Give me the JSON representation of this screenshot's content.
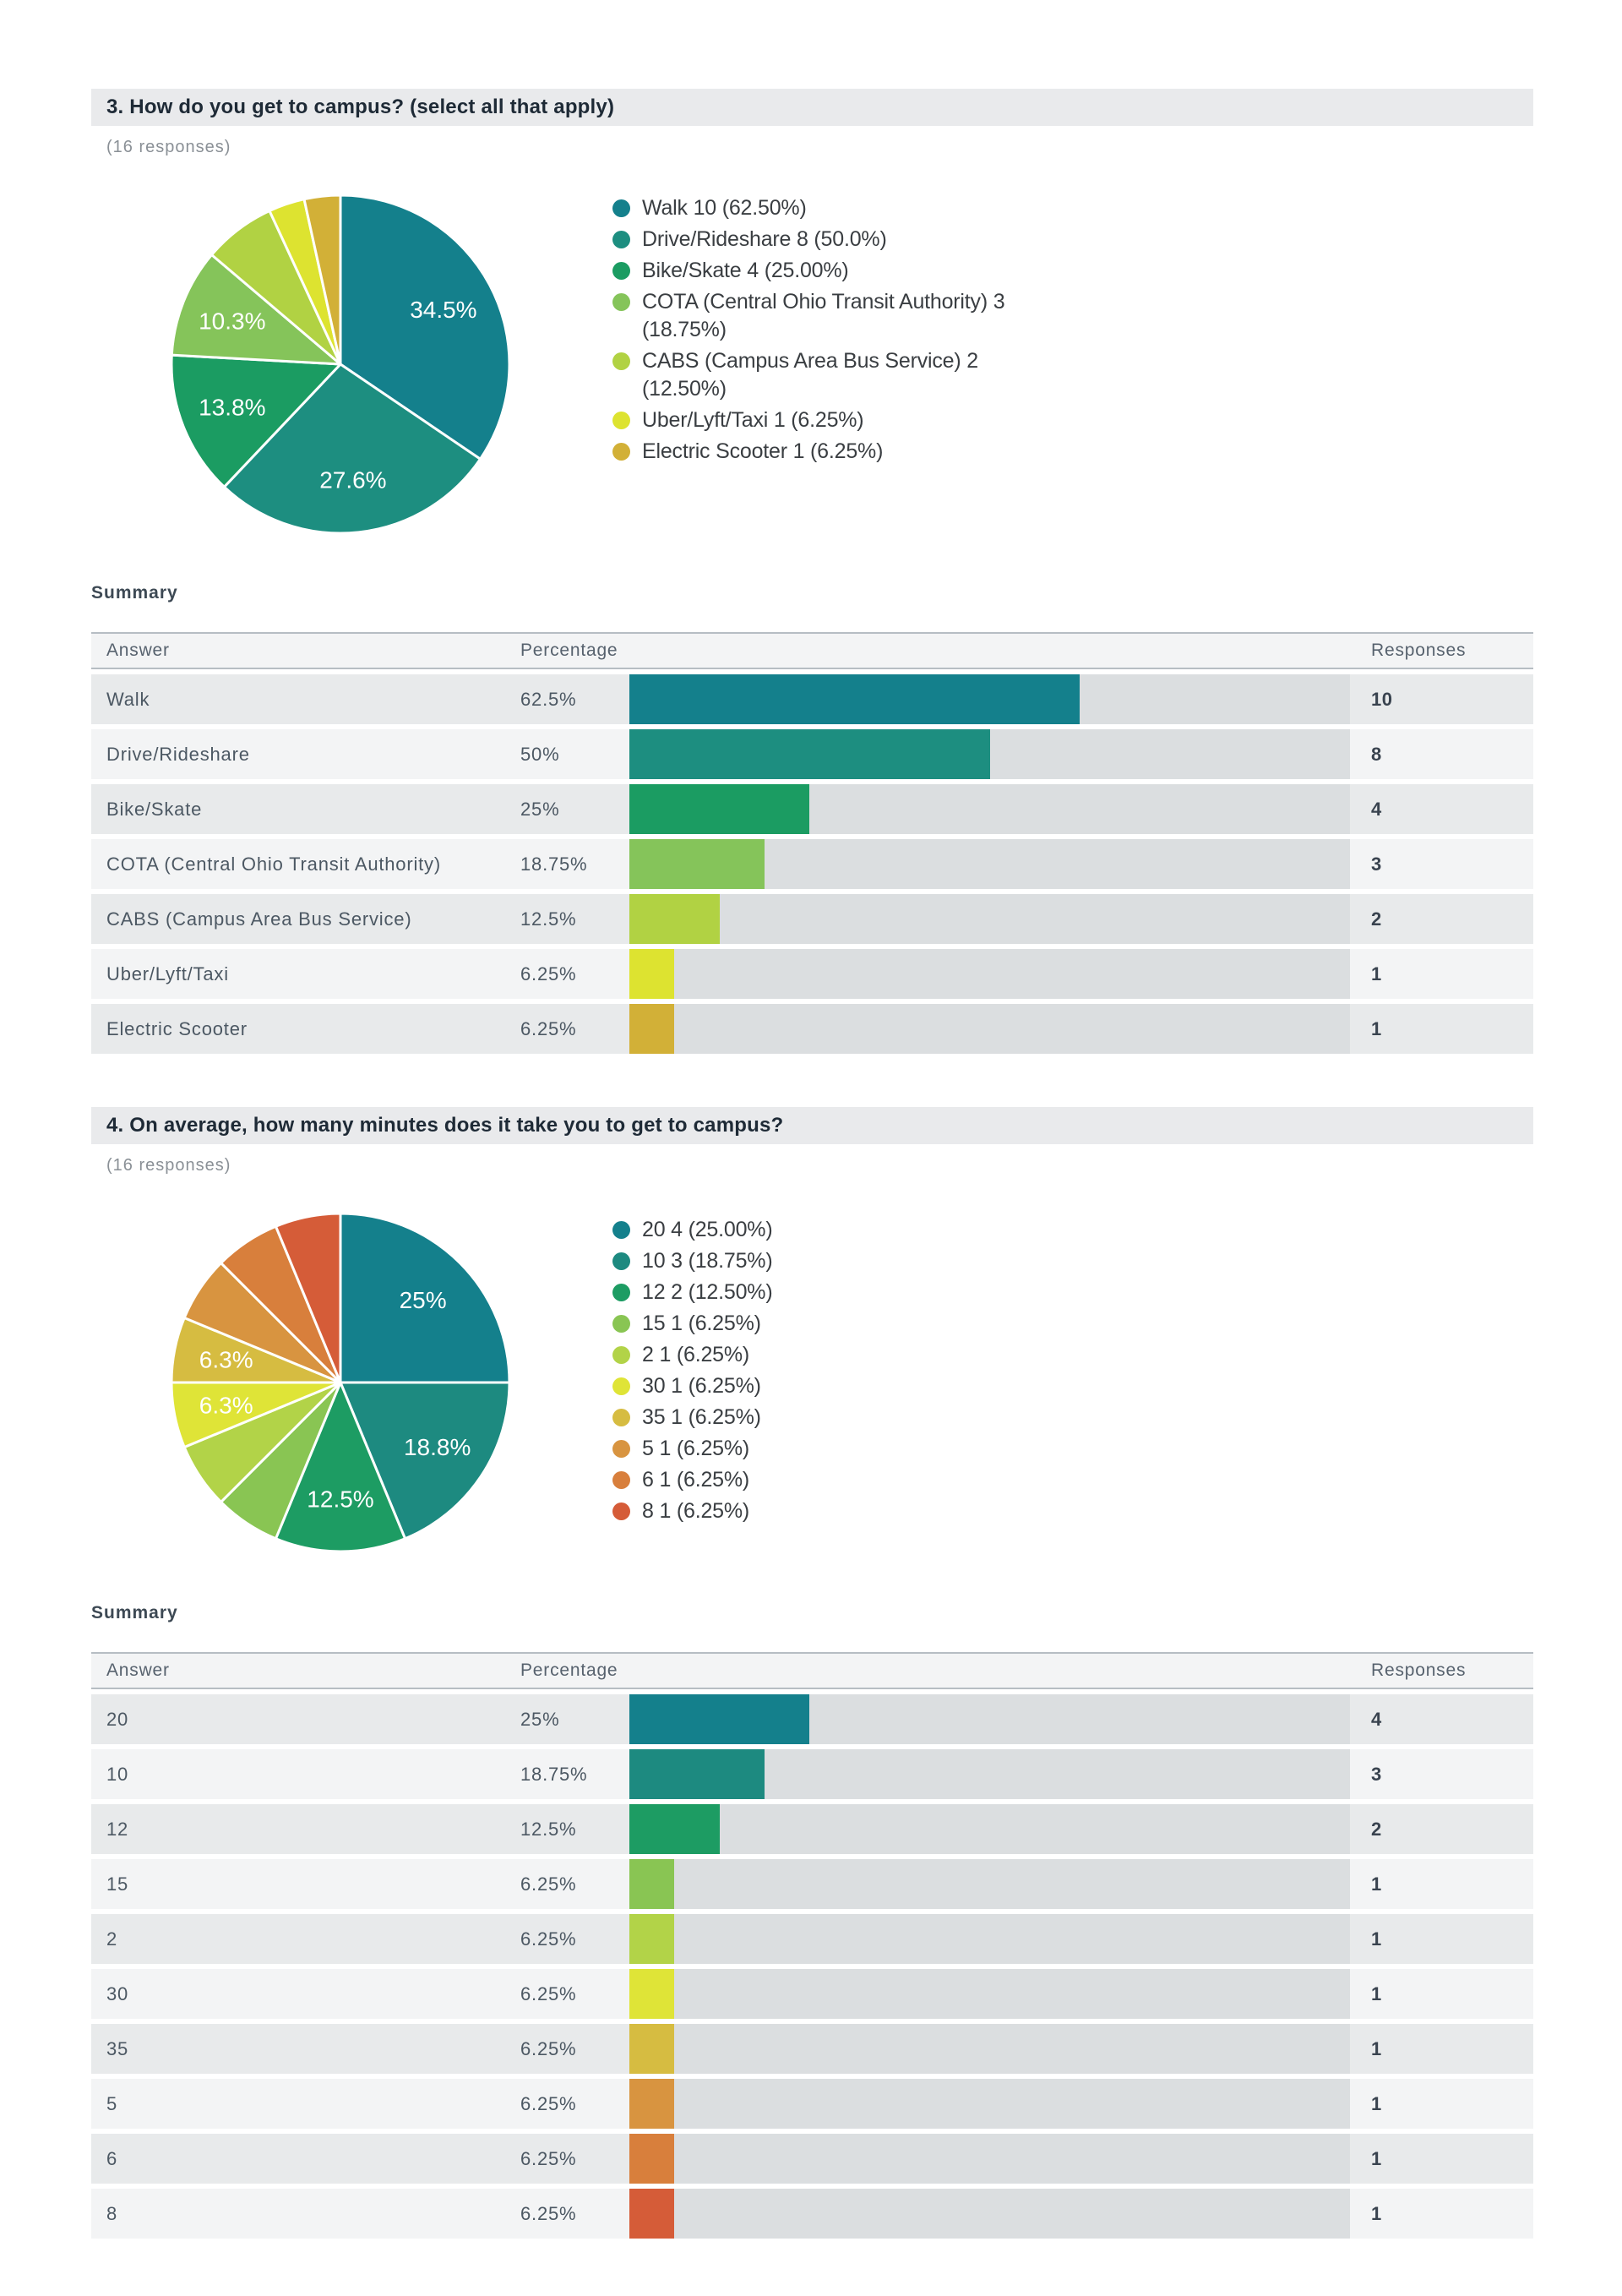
{
  "page": {
    "background": "#ffffff"
  },
  "sections": [
    {
      "header": "3. How do you get to campus? (select all that apply)",
      "responses_note": "(16 responses)",
      "summary_label": "Summary",
      "columns": {
        "answer": "Answer",
        "percentage": "Percentage",
        "responses": "Responses"
      }
    },
    {
      "header": "4. On average, how many minutes does it take you to get to campus?",
      "responses_note": "(16 responses)",
      "summary_label": "Summary",
      "columns": {
        "answer": "Answer",
        "percentage": "Percentage",
        "responses": "Responses"
      }
    }
  ],
  "chart_data": [
    {
      "type": "pie",
      "question": "3. How do you get to campus? (select all that apply)",
      "total_responses": 16,
      "categories": [
        "Walk",
        "Drive/Rideshare",
        "Bike/Skate",
        "COTA (Central Ohio Transit Authority)",
        "CABS (Campus Area Bus Service)",
        "Uber/Lyft/Taxi",
        "Electric Scooter"
      ],
      "values": [
        10,
        8,
        4,
        3,
        2,
        1,
        1
      ],
      "row_percent_labels": [
        "62.5%",
        "50%",
        "25%",
        "18.75%",
        "12.5%",
        "6.25%",
        "6.25%"
      ],
      "row_percent_values": [
        62.5,
        50,
        25,
        18.75,
        12.5,
        6.25,
        6.25
      ],
      "slice_labels": [
        "34.5%",
        "27.6%",
        "13.8%",
        "10.3%",
        "",
        "",
        ""
      ],
      "legend_labels": [
        "Walk 10 (62.50%)",
        "Drive/Rideshare 8 (50.0%)",
        "Bike/Skate 4 (25.00%)",
        "COTA (Central Ohio Transit Authority) 3 (18.75%)",
        "CABS (Campus Area Bus Service) 2 (12.50%)",
        "Uber/Lyft/Taxi 1 (6.25%)",
        "Electric Scooter 1 (6.25%)"
      ],
      "colors": [
        "#14808c",
        "#1d8e80",
        "#1b9c62",
        "#85c45a",
        "#b1d243",
        "#dde330",
        "#d2b037"
      ],
      "legend_position": "right",
      "label_color": "#ffffff"
    },
    {
      "type": "pie",
      "question": "4. On average, how many minutes does it take you to get to campus?",
      "total_responses": 16,
      "categories": [
        "20",
        "10",
        "12",
        "15",
        "2",
        "30",
        "35",
        "5",
        "6",
        "8"
      ],
      "values": [
        4,
        3,
        2,
        1,
        1,
        1,
        1,
        1,
        1,
        1
      ],
      "row_percent_labels": [
        "25%",
        "18.75%",
        "12.5%",
        "6.25%",
        "6.25%",
        "6.25%",
        "6.25%",
        "6.25%",
        "6.25%",
        "6.25%"
      ],
      "row_percent_values": [
        25,
        18.75,
        12.5,
        6.25,
        6.25,
        6.25,
        6.25,
        6.25,
        6.25,
        6.25
      ],
      "slice_labels": [
        "25%",
        "18.8%",
        "12.5%",
        "",
        "",
        "6.3%",
        "6.3%",
        "",
        "",
        ""
      ],
      "legend_labels": [
        "20 4 (25.00%)",
        "10 3 (18.75%)",
        "12 2 (12.50%)",
        "15 1 (6.25%)",
        "2 1 (6.25%)",
        "30 1 (6.25%)",
        "35 1 (6.25%)",
        "5 1 (6.25%)",
        "6 1 (6.25%)",
        "8 1 (6.25%)"
      ],
      "colors": [
        "#14808c",
        "#1d8a80",
        "#1d9c63",
        "#89c553",
        "#b2d348",
        "#dfe437",
        "#d6bc41",
        "#d89440",
        "#d87f3c",
        "#d55c38"
      ],
      "legend_position": "right",
      "label_color": "#ffffff"
    }
  ]
}
